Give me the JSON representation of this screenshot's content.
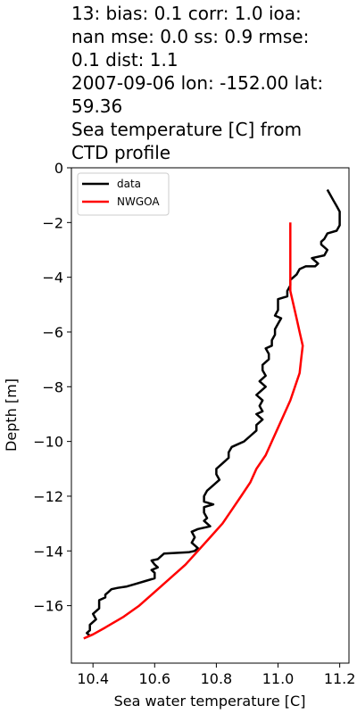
{
  "title_lines": [
    "13: bias: 0.1  corr: 1.0  ioa:",
    "nan  mse: 0.0  ss: 0.9  rmse:",
    "0.1  dist: 1.1",
    "2007-09-06 lon: -152.00 lat:",
    "59.36",
    "Sea temperature [C] from",
    "CTD profile"
  ],
  "chart_data": {
    "type": "line",
    "xlabel": "Sea water temperature [C]",
    "ylabel": "Depth [m]",
    "xlim": [
      10.33,
      11.23
    ],
    "ylim": [
      -18.1,
      0
    ],
    "xticks": [
      10.4,
      10.6,
      10.8,
      11.0,
      11.2
    ],
    "xtick_labels": [
      "10.4",
      "10.6",
      "10.8",
      "11.0",
      "11.2"
    ],
    "yticks": [
      0,
      -2,
      -4,
      -6,
      -8,
      -10,
      -12,
      -14,
      -16
    ],
    "ytick_labels": [
      "0",
      "−2",
      "−4",
      "−6",
      "−8",
      "−10",
      "−12",
      "−14",
      "−16"
    ],
    "legend_position": "top-left",
    "series": [
      {
        "name": "data",
        "color": "#000000",
        "points": [
          [
            11.16,
            -0.8
          ],
          [
            11.17,
            -1.0
          ],
          [
            11.18,
            -1.2
          ],
          [
            11.19,
            -1.4
          ],
          [
            11.2,
            -1.6
          ],
          [
            11.2,
            -1.9
          ],
          [
            11.2,
            -2.1
          ],
          [
            11.19,
            -2.3
          ],
          [
            11.16,
            -2.4
          ],
          [
            11.15,
            -2.6
          ],
          [
            11.14,
            -2.7
          ],
          [
            11.14,
            -2.8
          ],
          [
            11.16,
            -3.0
          ],
          [
            11.15,
            -3.2
          ],
          [
            11.11,
            -3.3
          ],
          [
            11.12,
            -3.4
          ],
          [
            11.13,
            -3.5
          ],
          [
            11.12,
            -3.6
          ],
          [
            11.09,
            -3.6
          ],
          [
            11.07,
            -3.7
          ],
          [
            11.06,
            -3.9
          ],
          [
            11.04,
            -4.1
          ],
          [
            11.04,
            -4.3
          ],
          [
            11.03,
            -4.5
          ],
          [
            11.03,
            -4.7
          ],
          [
            11.0,
            -4.8
          ],
          [
            11.0,
            -5.0
          ],
          [
            11.0,
            -5.2
          ],
          [
            10.99,
            -5.4
          ],
          [
            11.01,
            -5.5
          ],
          [
            11.0,
            -5.7
          ],
          [
            10.99,
            -5.9
          ],
          [
            10.99,
            -6.1
          ],
          [
            10.98,
            -6.3
          ],
          [
            10.98,
            -6.5
          ],
          [
            10.96,
            -6.6
          ],
          [
            10.97,
            -6.8
          ],
          [
            10.97,
            -7.0
          ],
          [
            10.95,
            -7.2
          ],
          [
            10.95,
            -7.4
          ],
          [
            10.96,
            -7.6
          ],
          [
            10.94,
            -7.8
          ],
          [
            10.96,
            -8.0
          ],
          [
            10.94,
            -8.2
          ],
          [
            10.93,
            -8.3
          ],
          [
            10.95,
            -8.5
          ],
          [
            10.94,
            -8.7
          ],
          [
            10.95,
            -8.9
          ],
          [
            10.93,
            -9.0
          ],
          [
            10.95,
            -9.2
          ],
          [
            10.93,
            -9.4
          ],
          [
            10.93,
            -9.6
          ],
          [
            10.91,
            -9.8
          ],
          [
            10.89,
            -10.0
          ],
          [
            10.87,
            -10.1
          ],
          [
            10.85,
            -10.2
          ],
          [
            10.84,
            -10.4
          ],
          [
            10.84,
            -10.6
          ],
          [
            10.82,
            -10.8
          ],
          [
            10.8,
            -11.0
          ],
          [
            10.8,
            -11.2
          ],
          [
            10.81,
            -11.4
          ],
          [
            10.79,
            -11.6
          ],
          [
            10.77,
            -11.8
          ],
          [
            10.76,
            -12.0
          ],
          [
            10.76,
            -12.2
          ],
          [
            10.79,
            -12.3
          ],
          [
            10.76,
            -12.4
          ],
          [
            10.76,
            -12.6
          ],
          [
            10.77,
            -12.8
          ],
          [
            10.76,
            -12.9
          ],
          [
            10.78,
            -13.1
          ],
          [
            10.74,
            -13.2
          ],
          [
            10.72,
            -13.3
          ],
          [
            10.73,
            -13.5
          ],
          [
            10.72,
            -13.7
          ],
          [
            10.73,
            -13.8
          ],
          [
            10.74,
            -13.9
          ],
          [
            10.73,
            -14.0
          ],
          [
            10.71,
            -14.05
          ],
          [
            10.63,
            -14.1
          ],
          [
            10.62,
            -14.2
          ],
          [
            10.61,
            -14.3
          ],
          [
            10.59,
            -14.35
          ],
          [
            10.6,
            -14.5
          ],
          [
            10.61,
            -14.6
          ],
          [
            10.59,
            -14.7
          ],
          [
            10.6,
            -14.8
          ],
          [
            10.6,
            -15.0
          ],
          [
            10.57,
            -15.1
          ],
          [
            10.54,
            -15.2
          ],
          [
            10.51,
            -15.3
          ],
          [
            10.48,
            -15.35
          ],
          [
            10.46,
            -15.4
          ],
          [
            10.45,
            -15.5
          ],
          [
            10.44,
            -15.6
          ],
          [
            10.44,
            -15.7
          ],
          [
            10.42,
            -15.8
          ],
          [
            10.42,
            -15.95
          ],
          [
            10.42,
            -16.1
          ],
          [
            10.4,
            -16.3
          ],
          [
            10.41,
            -16.5
          ],
          [
            10.39,
            -16.7
          ],
          [
            10.39,
            -16.9
          ],
          [
            10.38,
            -17.0
          ],
          [
            10.39,
            -17.1
          ]
        ]
      },
      {
        "name": "NWGOA",
        "color": "#ff0000",
        "points": [
          [
            11.04,
            -2.0
          ],
          [
            11.04,
            -3.0
          ],
          [
            11.04,
            -4.0
          ],
          [
            11.04,
            -4.5
          ],
          [
            11.05,
            -5.0
          ],
          [
            11.06,
            -5.5
          ],
          [
            11.07,
            -6.0
          ],
          [
            11.08,
            -6.5
          ],
          [
            11.075,
            -7.0
          ],
          [
            11.07,
            -7.5
          ],
          [
            11.055,
            -8.0
          ],
          [
            11.04,
            -8.5
          ],
          [
            11.02,
            -9.0
          ],
          [
            11.0,
            -9.5
          ],
          [
            10.98,
            -10.0
          ],
          [
            10.96,
            -10.5
          ],
          [
            10.93,
            -11.0
          ],
          [
            10.91,
            -11.5
          ],
          [
            10.88,
            -12.0
          ],
          [
            10.85,
            -12.5
          ],
          [
            10.82,
            -13.0
          ],
          [
            10.78,
            -13.5
          ],
          [
            10.74,
            -14.0
          ],
          [
            10.7,
            -14.5
          ],
          [
            10.65,
            -15.0
          ],
          [
            10.6,
            -15.5
          ],
          [
            10.55,
            -16.0
          ],
          [
            10.5,
            -16.4
          ],
          [
            10.44,
            -16.8
          ],
          [
            10.4,
            -17.05
          ],
          [
            10.37,
            -17.2
          ]
        ]
      }
    ]
  }
}
